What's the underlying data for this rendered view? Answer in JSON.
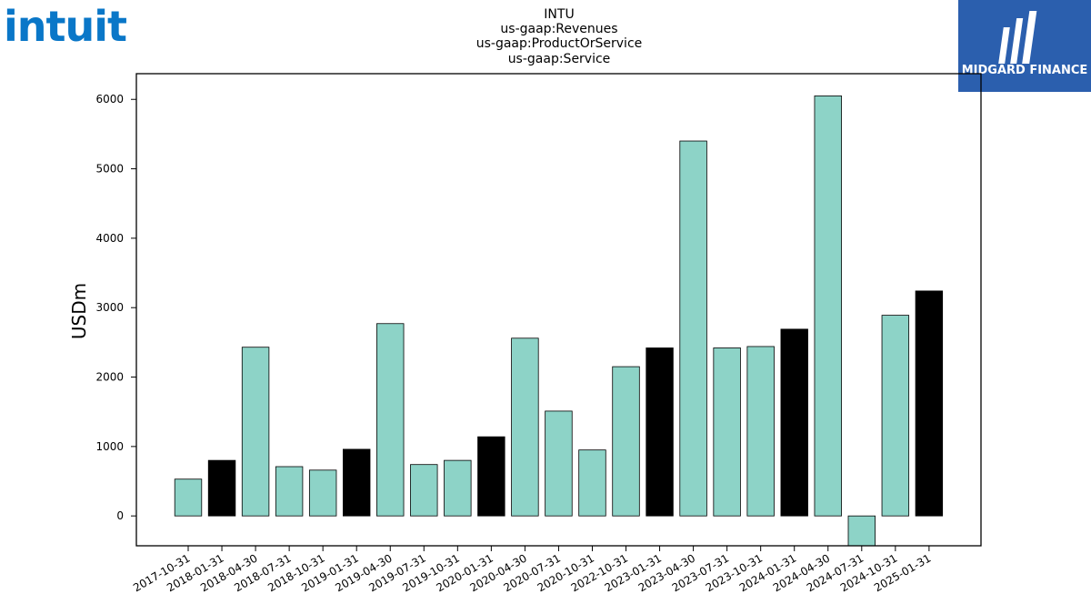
{
  "branding": {
    "left_logo_text": "intuit",
    "right_logo_text": "MIDGARD FINANCE",
    "left_logo_color": "#0a77c8",
    "right_logo_bg": "#2b5fae",
    "right_logo_fg": "#ffffff"
  },
  "chart_data": {
    "type": "bar",
    "title_lines": [
      "INTU",
      "us-gaap:Revenues",
      "us-gaap:ProductOrService",
      "us-gaap:Service"
    ],
    "xlabel": "",
    "ylabel": "USDm",
    "ylim": [
      -430,
      6370
    ],
    "yticks": [
      0,
      1000,
      2000,
      3000,
      4000,
      5000,
      6000
    ],
    "categories": [
      "2017-10-31",
      "2018-01-31",
      "2018-04-30",
      "2018-07-31",
      "2018-10-31",
      "2019-01-31",
      "2019-04-30",
      "2019-07-31",
      "2019-10-31",
      "2020-01-31",
      "2020-04-30",
      "2020-07-31",
      "2020-10-31",
      "2022-10-31",
      "2023-01-31",
      "2023-04-30",
      "2023-07-31",
      "2023-10-31",
      "2024-01-31",
      "2024-04-30",
      "2024-07-31",
      "2024-10-31",
      "2025-01-31"
    ],
    "values": [
      530,
      800,
      2430,
      710,
      660,
      960,
      2770,
      740,
      800,
      1140,
      2560,
      1510,
      950,
      2150,
      2420,
      5400,
      2420,
      2440,
      2690,
      6050,
      -430,
      2890,
      3240
    ],
    "highlighted": [
      false,
      true,
      false,
      false,
      false,
      true,
      false,
      false,
      false,
      true,
      false,
      false,
      false,
      false,
      true,
      false,
      false,
      false,
      true,
      false,
      false,
      false,
      true
    ],
    "colors": {
      "default": "#8dd3c7",
      "highlight": "#000000",
      "edge": "#000000"
    },
    "grid": false,
    "legend": "none"
  }
}
